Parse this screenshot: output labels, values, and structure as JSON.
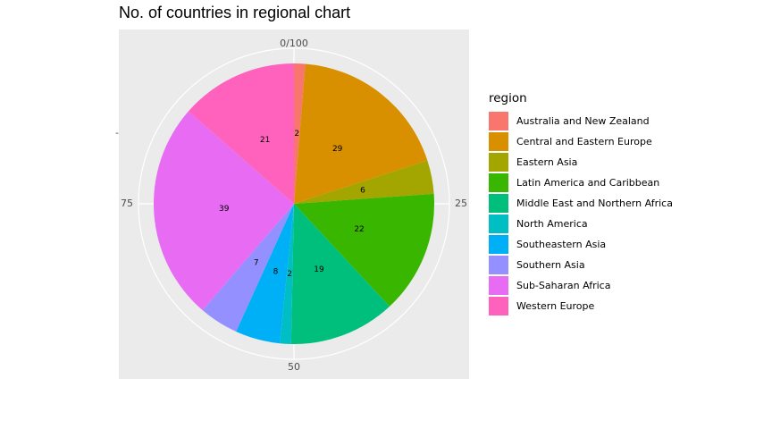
{
  "chart_data": {
    "type": "pie",
    "coord": "polar",
    "title": "No. of countries in regional chart",
    "xlabel": "",
    "ylabel": "",
    "angle_ticks": [
      "0/100",
      "25",
      "50",
      "75"
    ],
    "radial_tick": "-",
    "categories": [
      "Australia and New Zealand",
      "Central and Eastern Europe",
      "Eastern Asia",
      "Latin America and Caribbean",
      "Middle East and Northern Africa",
      "North America",
      "Southeastern Asia",
      "Southern Asia",
      "Sub-Saharan Africa",
      "Western Europe"
    ],
    "values": [
      2,
      29,
      6,
      22,
      19,
      2,
      8,
      7,
      39,
      21
    ],
    "colors": [
      "#F8766D",
      "#D89000",
      "#A3A500",
      "#39B600",
      "#00BF7D",
      "#00BFC4",
      "#00B0F6",
      "#9590FF",
      "#E76BF3",
      "#FF62BC"
    ],
    "legend": {
      "title": "region",
      "position": "right"
    },
    "grid": true
  }
}
